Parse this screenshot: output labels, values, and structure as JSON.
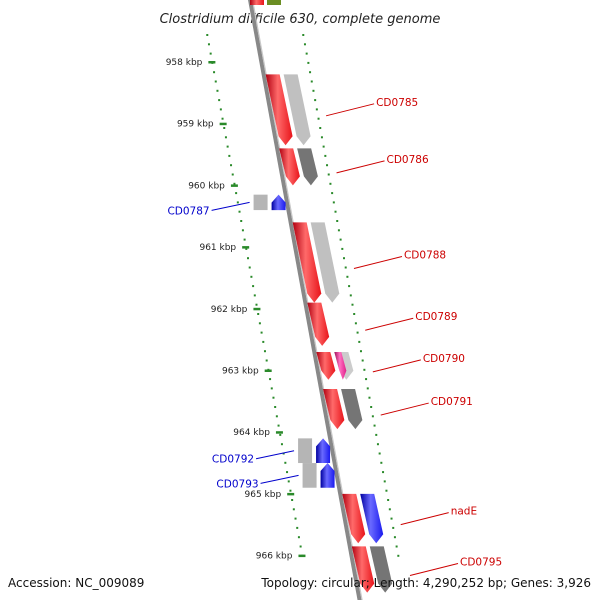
{
  "title": "Clostridium difficile 630, complete genome",
  "colors": {
    "forward": "#e8141a",
    "reverse": "#1a1aee",
    "pseudo": "#e0208a",
    "backbone": "#888888",
    "ticks": "#2a8a2a"
  },
  "ticks": [
    {
      "kbp": 958,
      "label": "958 kbp"
    },
    {
      "kbp": 959,
      "label": "959 kbp"
    },
    {
      "kbp": 960,
      "label": "960 kbp"
    },
    {
      "kbp": 961,
      "label": "961 kbp"
    },
    {
      "kbp": 962,
      "label": "962 kbp"
    },
    {
      "kbp": 963,
      "label": "963 kbp"
    },
    {
      "kbp": 964,
      "label": "964 kbp"
    },
    {
      "kbp": 965,
      "label": "965 kbp"
    },
    {
      "kbp": 966,
      "label": "966 kbp"
    }
  ],
  "genes": [
    {
      "name": "CD0785",
      "strand": "+",
      "start": 958.2,
      "end": 959.35,
      "color": "red",
      "shade": "#bdbdbd"
    },
    {
      "name": "CD0786",
      "strand": "+",
      "start": 959.4,
      "end": 960.0,
      "color": "red",
      "shade": "#6e6e6e"
    },
    {
      "name": "CD0787",
      "strand": "-",
      "start": 960.15,
      "end": 960.4,
      "color": "blue",
      "shade": "#b5b5b5"
    },
    {
      "name": "CD0788",
      "strand": "+",
      "start": 960.6,
      "end": 961.9,
      "color": "red",
      "shade": "#bdbdbd"
    },
    {
      "name": "CD0789",
      "strand": "+",
      "start": 961.9,
      "end": 962.6,
      "color": "red",
      "shade": null
    },
    {
      "name": "CD0790",
      "strand": "+",
      "start": 962.7,
      "end": 963.15,
      "color": "red",
      "shade": "#c9c9c9",
      "extra": "pink"
    },
    {
      "name": "CD0791",
      "strand": "+",
      "start": 963.3,
      "end": 963.95,
      "color": "red",
      "shade": "#6e6e6e"
    },
    {
      "name": "CD0792",
      "strand": "-",
      "start": 964.1,
      "end": 964.5,
      "color": "blue",
      "shade": "#b5b5b5"
    },
    {
      "name": "CD0793",
      "strand": "-",
      "start": 964.5,
      "end": 964.9,
      "color": "blue",
      "shade": "#b5b5b5"
    },
    {
      "name": "nadE",
      "strand": "+",
      "start": 965.0,
      "end": 965.8,
      "color": "red",
      "shade": null,
      "extra": "blue"
    },
    {
      "name": "CD0795",
      "strand": "+",
      "start": 965.85,
      "end": 966.6,
      "color": "red",
      "shade": "#6e6e6e"
    }
  ],
  "footer": {
    "accession": "Accession: NC_009089",
    "summary": "Topology: circular; Length: 4,290,252 bp; Genes: 3,926"
  }
}
